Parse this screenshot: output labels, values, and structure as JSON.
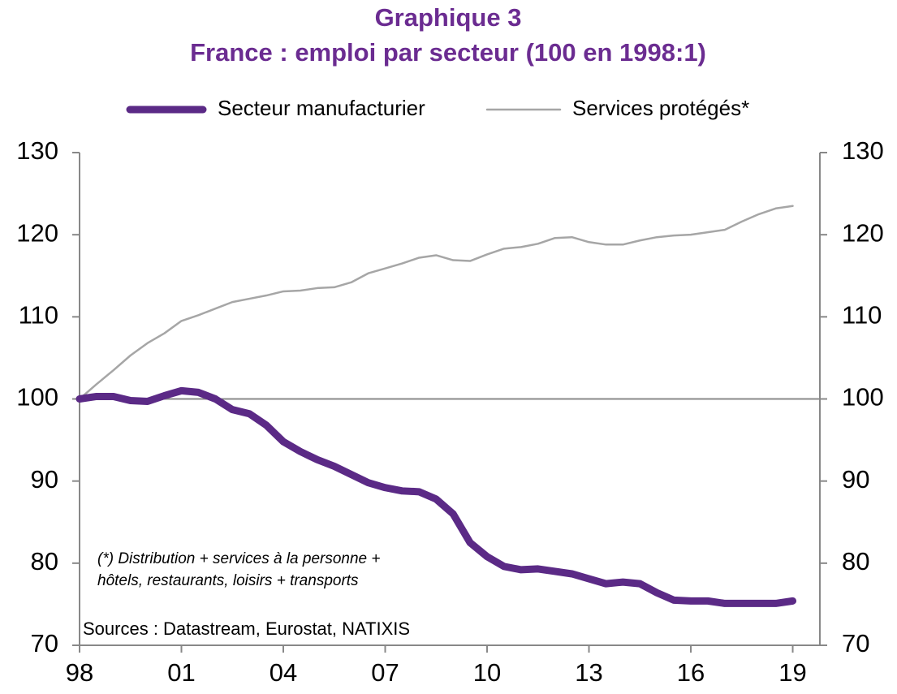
{
  "chart_data": {
    "type": "line",
    "title": "Graphique 3",
    "subtitle": "France : emploi par secteur (100 en 1998:1)",
    "x": [
      1998,
      1998.5,
      1999,
      1999.5,
      2000,
      2000.5,
      2001,
      2001.5,
      2002,
      2002.5,
      2003,
      2003.5,
      2004,
      2004.5,
      2005,
      2005.5,
      2006,
      2006.5,
      2007,
      2007.5,
      2008,
      2008.5,
      2009,
      2009.5,
      2010,
      2010.5,
      2011,
      2011.5,
      2012,
      2012.5,
      2013,
      2013.5,
      2014,
      2014.5,
      2015,
      2015.5,
      2016,
      2016.5,
      2017,
      2017.5,
      2018,
      2018.5,
      2019
    ],
    "series": [
      {
        "name": "Secteur manufacturier",
        "color": "#5b2a86",
        "width": 9,
        "values": [
          100,
          100.3,
          100.3,
          99.8,
          99.7,
          100.4,
          101,
          100.8,
          100,
          98.7,
          98.2,
          96.8,
          94.8,
          93.6,
          92.6,
          91.8,
          90.8,
          89.8,
          89.2,
          88.8,
          88.7,
          87.8,
          86,
          82.5,
          80.8,
          79.6,
          79.2,
          79.3,
          79,
          78.7,
          78.1,
          77.5,
          77.7,
          77.5,
          76.4,
          75.5,
          75.4,
          75.4,
          75.1,
          75.1,
          75.1,
          75.1,
          75.4
        ]
      },
      {
        "name": "Services protégés*",
        "color": "#a6a6a6",
        "width": 2.5,
        "values": [
          100,
          101.8,
          103.5,
          105.3,
          106.8,
          108,
          109.5,
          110.2,
          111,
          111.8,
          112.2,
          112.6,
          113.1,
          113.2,
          113.5,
          113.6,
          114.2,
          115.3,
          115.9,
          116.5,
          117.2,
          117.5,
          116.9,
          116.8,
          117.6,
          118.3,
          118.5,
          118.9,
          119.6,
          119.7,
          119.1,
          118.8,
          118.8,
          119.3,
          119.7,
          119.9,
          120,
          120.3,
          120.6,
          121.6,
          122.5,
          123.2,
          123.5
        ]
      }
    ],
    "xlim": [
      1998,
      2019.8
    ],
    "xticks": [
      {
        "value": 1998,
        "label": "98"
      },
      {
        "value": 2001,
        "label": "01"
      },
      {
        "value": 2004,
        "label": "04"
      },
      {
        "value": 2007,
        "label": "07"
      },
      {
        "value": 2010,
        "label": "10"
      },
      {
        "value": 2013,
        "label": "13"
      },
      {
        "value": 2016,
        "label": "16"
      },
      {
        "value": 2019,
        "label": "19"
      }
    ],
    "ylim": [
      70,
      130
    ],
    "yticks": [
      70,
      80,
      90,
      100,
      110,
      120,
      130
    ],
    "y2lim": [
      70,
      130
    ],
    "y2ticks": [
      70,
      80,
      90,
      100,
      110,
      120,
      130
    ],
    "hline": 100,
    "legend": "top",
    "annotations": [
      "(*) Distribution + services à la personne +",
      "hôtels, restaurants, loisirs + transports"
    ],
    "source": "Sources  : Datastream,  Eurostat,  NATIXIS"
  }
}
